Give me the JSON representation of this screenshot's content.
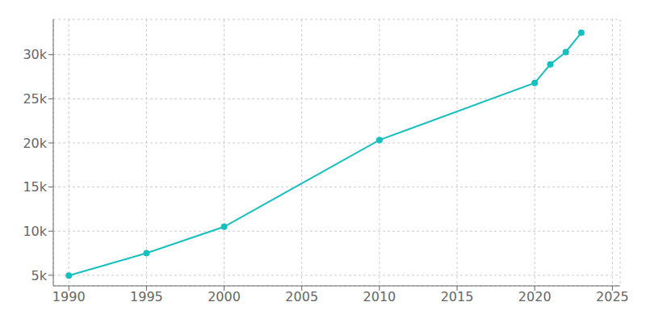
{
  "chart_data": {
    "type": "line",
    "x": [
      1990,
      1995,
      2000,
      2010,
      2020,
      2021,
      2022,
      2023
    ],
    "values": [
      4974,
      7500,
      10500,
      20329,
      26800,
      28900,
      30300,
      32500
    ],
    "color": "#17BFC0",
    "marker": "circle",
    "xlim": [
      1989,
      2025.5
    ],
    "ylim": [
      3800,
      34000
    ],
    "xticks": [
      1990,
      1995,
      2000,
      2005,
      2010,
      2015,
      2020,
      2025
    ],
    "yticks": [
      {
        "value": 5000,
        "label": "5k"
      },
      {
        "value": 10000,
        "label": "10k"
      },
      {
        "value": 15000,
        "label": "15k"
      },
      {
        "value": 20000,
        "label": "20k"
      },
      {
        "value": 25000,
        "label": "25k"
      },
      {
        "value": 30000,
        "label": "30k"
      }
    ],
    "grid": true
  }
}
